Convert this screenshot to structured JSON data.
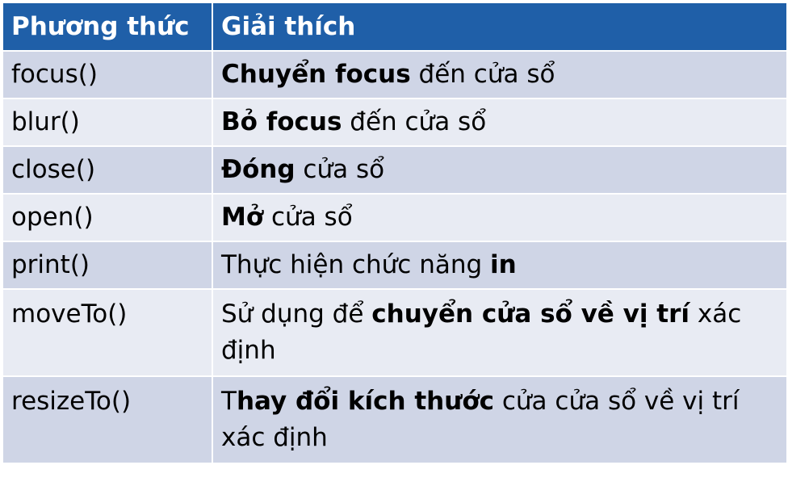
{
  "header": {
    "col1": "Phương thức",
    "col2": "Giải thích"
  },
  "rows": [
    {
      "method": "focus()",
      "parts": [
        {
          "t": "Chuyển focus",
          "b": true
        },
        {
          "t": " đến cửa sổ",
          "b": false
        }
      ]
    },
    {
      "method": "blur()",
      "parts": [
        {
          "t": "Bỏ focus",
          "b": true
        },
        {
          "t": " đến cửa sổ",
          "b": false
        }
      ]
    },
    {
      "method": "close()",
      "parts": [
        {
          "t": "Đóng",
          "b": true
        },
        {
          "t": " cửa sổ",
          "b": false
        }
      ]
    },
    {
      "method": "open()",
      "parts": [
        {
          "t": "Mở",
          "b": true
        },
        {
          "t": " cửa sổ",
          "b": false
        }
      ]
    },
    {
      "method": "print()",
      "parts": [
        {
          "t": "Thực hiện chức năng ",
          "b": false
        },
        {
          "t": "in",
          "b": true
        }
      ]
    },
    {
      "method": "moveTo()",
      "parts": [
        {
          "t": "Sử dụng để ",
          "b": false
        },
        {
          "t": "chuyển cửa sổ về vị trí",
          "b": true
        },
        {
          "t": " xác định",
          "b": false
        }
      ]
    },
    {
      "method": "resizeTo()",
      "parts": [
        {
          "t": "T",
          "b": false
        },
        {
          "t": "hay đổi kích thước",
          "b": true
        },
        {
          "t": " cửa cửa sổ về vị trí xác định",
          "b": false
        }
      ]
    }
  ]
}
